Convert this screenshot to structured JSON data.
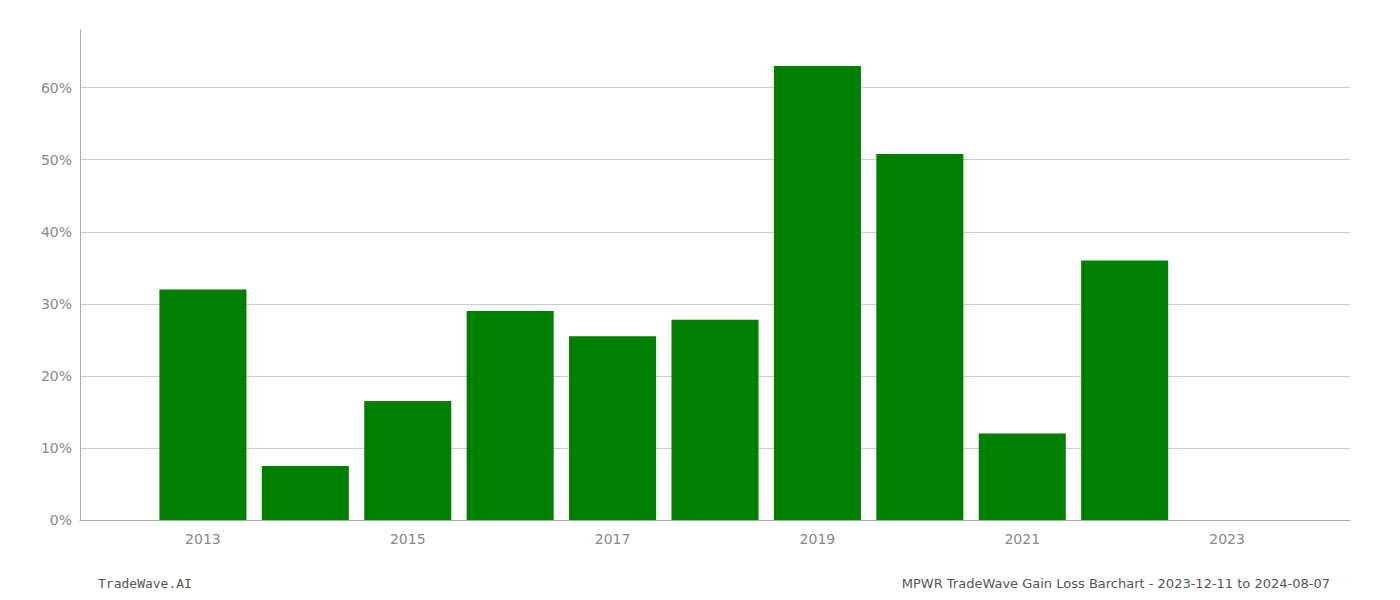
{
  "chart_data": {
    "type": "bar",
    "x": [
      2013,
      2014,
      2015,
      2016,
      2017,
      2018,
      2019,
      2020,
      2021,
      2022
    ],
    "values": [
      0.32,
      0.075,
      0.165,
      0.29,
      0.255,
      0.278,
      0.63,
      0.508,
      0.12,
      0.36
    ],
    "color": "#008000",
    "xlim": [
      2011.8,
      2024.2
    ],
    "xticks": [
      2013,
      2015,
      2017,
      2019,
      2021,
      2023
    ],
    "ylim": [
      0,
      0.68
    ],
    "yticks": [
      {
        "value": 0.0,
        "label": "0%"
      },
      {
        "value": 0.1,
        "label": "10%"
      },
      {
        "value": 0.2,
        "label": "20%"
      },
      {
        "value": 0.3,
        "label": "30%"
      },
      {
        "value": 0.4,
        "label": "40%"
      },
      {
        "value": 0.5,
        "label": "50%"
      },
      {
        "value": 0.6,
        "label": "60%"
      }
    ],
    "grid": true,
    "annotations": [
      "TradeWave.AI",
      "MPWR TradeWave Gain Loss Barchart - 2023-12-11 to 2024-08-07"
    ]
  }
}
